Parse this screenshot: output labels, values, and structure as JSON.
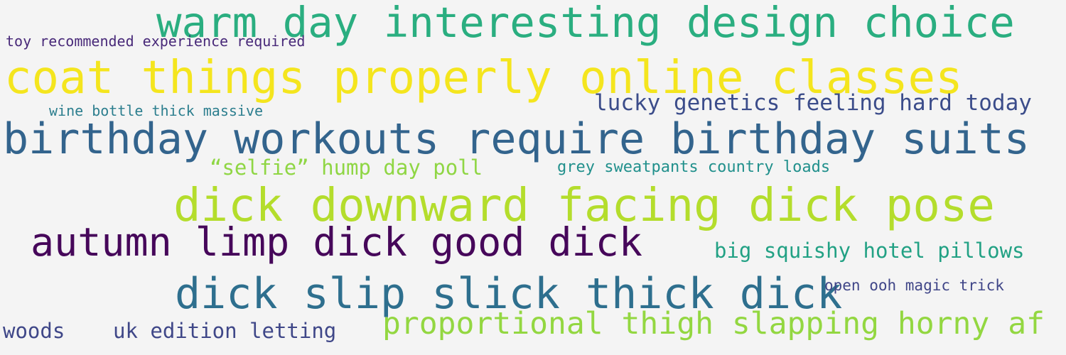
{
  "words": [
    {
      "text": "warm day interesting design choice",
      "color": "#2aae80"
    },
    {
      "text": "toy recommended experience required",
      "color": "#482979"
    },
    {
      "text": "coat things properly online classes",
      "color": "#f4e51e"
    },
    {
      "text": "lucky genetics feeling hard today",
      "color": "#3b4c8a"
    },
    {
      "text": "wine bottle thick massive",
      "color": "#2c7e8e"
    },
    {
      "text": "birthday workouts require birthday suits",
      "color": "#33648d"
    },
    {
      "text": "“selfie” hump day poll",
      "color": "#8fd644"
    },
    {
      "text": "grey sweatpants country loads",
      "color": "#21908c"
    },
    {
      "text": "dick downward facing dick pose",
      "color": "#b4dd2c"
    },
    {
      "text": "autumn limp dick good dick",
      "color": "#46075a"
    },
    {
      "text": "big squishy hotel pillows",
      "color": "#22a184"
    },
    {
      "text": "dick slip slick thick dick",
      "color": "#2e6f8e"
    },
    {
      "text": "open ooh magic trick",
      "color": "#404688"
    },
    {
      "text": "proportional thigh slapping horny af",
      "color": "#93d741"
    },
    {
      "text": "woods",
      "color": "#3f4788"
    },
    {
      "text": "uk edition letting",
      "color": "#3f4788"
    }
  ]
}
